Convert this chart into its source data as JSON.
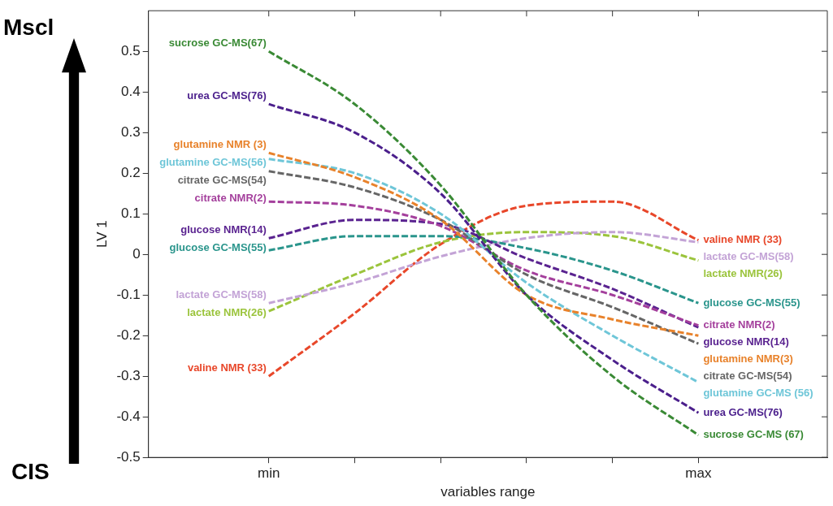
{
  "chart_data": {
    "type": "line",
    "xlabel": "variables range",
    "ylabel": "LV 1",
    "categories": [
      "min",
      null,
      null,
      null,
      null,
      "max"
    ],
    "ylim": [
      -0.5,
      0.6
    ],
    "yticks": [
      -0.5,
      -0.4,
      -0.3,
      -0.2,
      -0.1,
      0,
      0.1,
      0.2,
      0.3,
      0.4,
      0.5
    ],
    "grid": false,
    "legend": false,
    "marker": "none",
    "line_style": "dashed",
    "series": [
      {
        "name": "sucrose GC-MS(67)",
        "color": "#3a8a35",
        "values": [
          0.5,
          0.37,
          0.17,
          -0.1,
          -0.3,
          -0.445
        ]
      },
      {
        "name": "urea GC-MS(76)",
        "color": "#4b1f8c",
        "values": [
          0.37,
          0.3,
          0.15,
          -0.1,
          -0.26,
          -0.39
        ]
      },
      {
        "name": "glutamine NMR (3)",
        "color": "#e8822b",
        "values": [
          0.25,
          0.19,
          0.085,
          -0.1,
          -0.16,
          -0.2
        ]
      },
      {
        "name": "glutamine GC-MS(56)",
        "color": "#6ec6d8",
        "values": [
          0.235,
          0.2,
          0.1,
          -0.07,
          -0.2,
          -0.315
        ]
      },
      {
        "name": "citrate GC-MS(54)",
        "color": "#666666",
        "values": [
          0.205,
          0.165,
          0.085,
          -0.05,
          -0.13,
          -0.22
        ]
      },
      {
        "name": "citrate NMR(2)",
        "color": "#a43f9c",
        "values": [
          0.13,
          0.12,
          0.07,
          -0.04,
          -0.1,
          -0.175
        ]
      },
      {
        "name": "glucose NMR(14)",
        "color": "#5a2390",
        "values": [
          0.04,
          0.085,
          0.075,
          -0.01,
          -0.085,
          -0.18
        ]
      },
      {
        "name": "glucose GC-MS(55)",
        "color": "#2a958c",
        "values": [
          0.01,
          0.045,
          0.045,
          0.015,
          -0.04,
          -0.12
        ]
      },
      {
        "name": "lactate GC-MS(58)",
        "color": "#c3a3d6",
        "values": [
          -0.12,
          -0.07,
          -0.005,
          0.04,
          0.055,
          0.03
        ]
      },
      {
        "name": "lactate NMR(26)",
        "color": "#9bc43c",
        "values": [
          -0.14,
          -0.05,
          0.03,
          0.055,
          0.045,
          -0.015
        ]
      },
      {
        "name": "valine NMR (33)",
        "color": "#e8472a",
        "values": [
          -0.3,
          -0.145,
          0.025,
          0.12,
          0.13,
          0.035
        ]
      }
    ],
    "annotations": [
      "Mscl",
      "CIS",
      "sucrose GC-MS (67)",
      "urea GC-MS(76)",
      "glutamine NMR(3)",
      "glutamine GC-MS (56)",
      "citrate GC-MS(54)",
      "citrate NMR(2)",
      "glucose NMR(14)",
      "glucose GC-MS(55)",
      "lactate GC-MS(58)",
      "lactate NMR(26)",
      "valine NMR (33)"
    ]
  }
}
